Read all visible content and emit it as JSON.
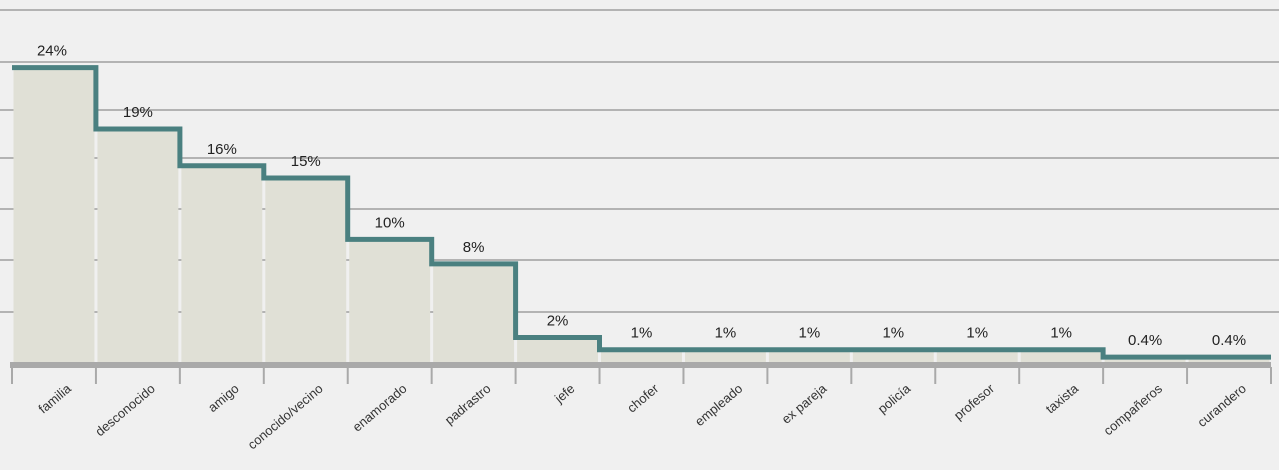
{
  "chart_data": {
    "type": "bar",
    "title": "",
    "xlabel": "",
    "ylabel": "",
    "categories": [
      "familia",
      "desconocido",
      "amigo",
      "conocido/vecino",
      "enamorado",
      "padrastro",
      "jefe",
      "chofer",
      "empleado",
      "ex pareja",
      "policía",
      "profesor",
      "taxista",
      "compañeros",
      "curandero"
    ],
    "values": [
      24,
      19,
      16,
      15,
      10,
      8,
      2,
      1,
      1,
      1,
      1,
      1,
      1,
      0.4,
      0.4
    ],
    "value_labels": [
      "24%",
      "19%",
      "16%",
      "15%",
      "10%",
      "8%",
      "2%",
      "1%",
      "1%",
      "1%",
      "1%",
      "1%",
      "1%",
      "0.4%",
      "0.4%"
    ],
    "ylim": [
      0,
      28.7
    ],
    "grid": true,
    "legend": "none",
    "colors": {
      "background": "#f0f0f0",
      "bar": "#e0e0d6",
      "step_line": "#4a8080",
      "grid": "#b3b3b3",
      "axis": "#a9a9a9"
    }
  }
}
